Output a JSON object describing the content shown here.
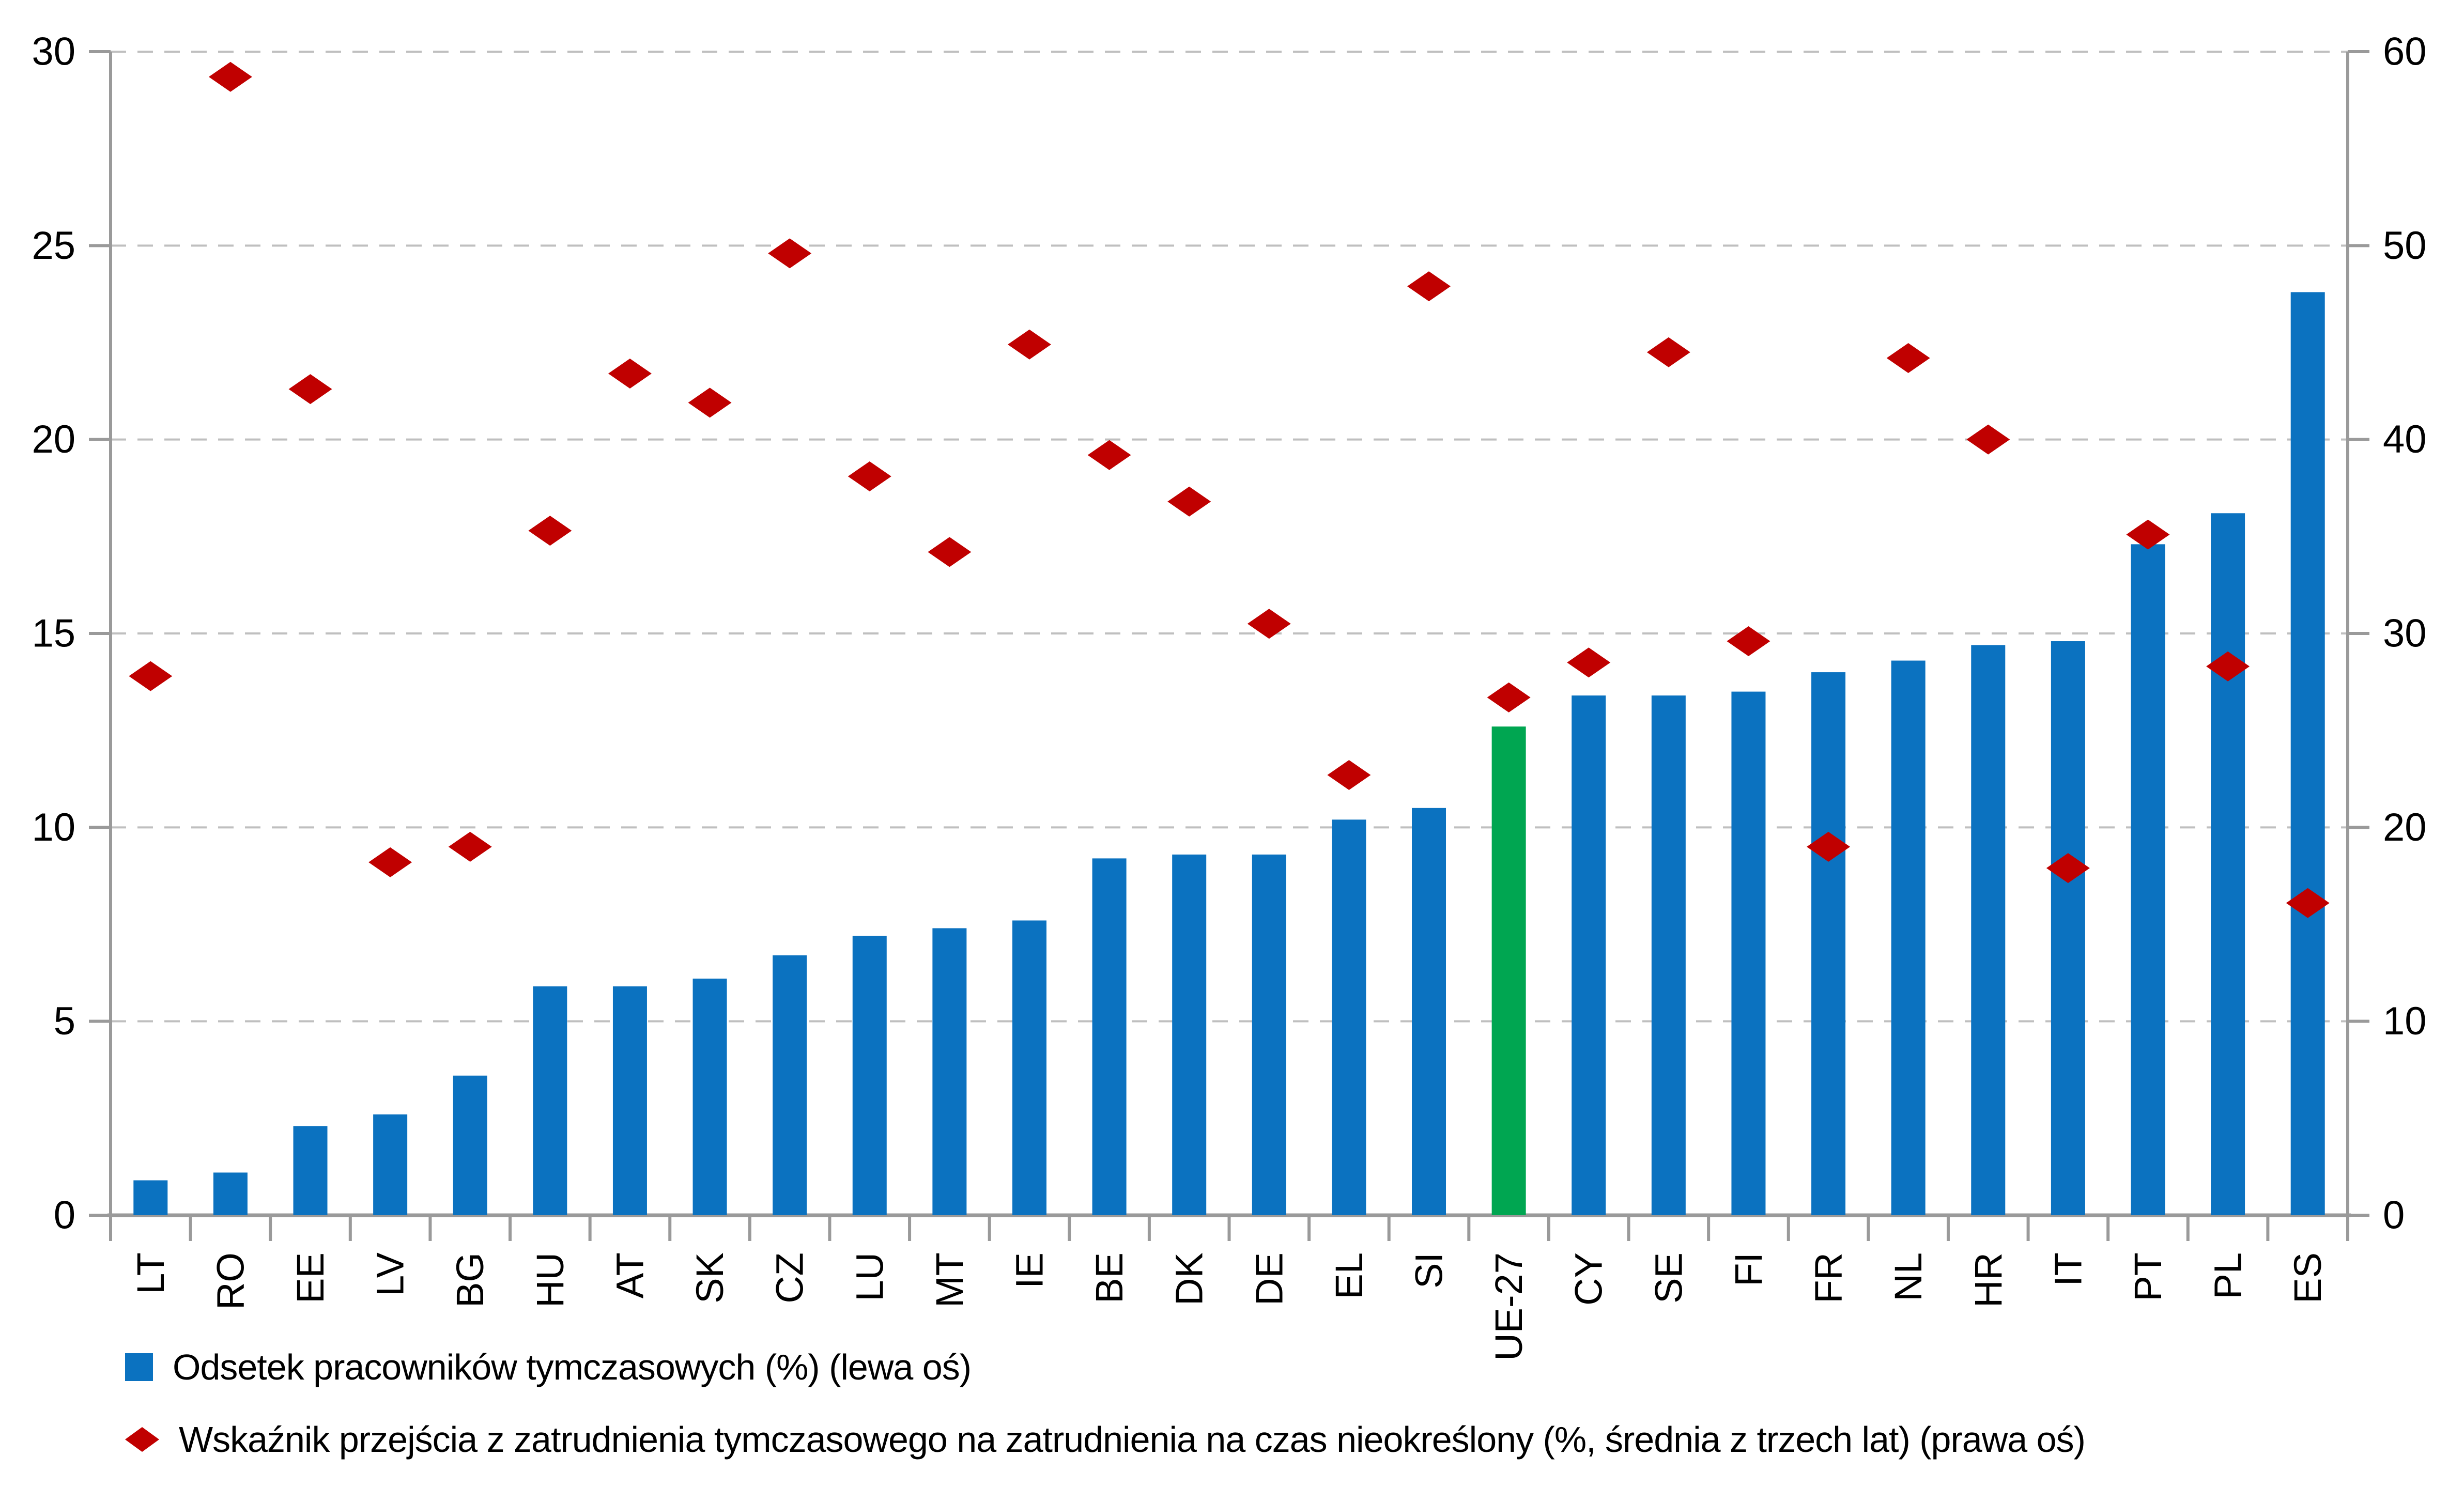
{
  "chart_data": {
    "type": "bar",
    "categories": [
      "LT",
      "RO",
      "EE",
      "LV",
      "BG",
      "HU",
      "AT",
      "SK",
      "CZ",
      "LU",
      "MT",
      "IE",
      "BE",
      "DK",
      "DE",
      "EL",
      "SI",
      "UE-27",
      "CY",
      "SE",
      "FI",
      "FR",
      "NL",
      "HR",
      "IT",
      "PT",
      "PL",
      "ES"
    ],
    "series": [
      {
        "name": "Odsetek pracowników tymczasowych (%) (lewa oś)",
        "type": "bar",
        "axis": "left",
        "color": "#0b72c0",
        "highlight": {
          "category": "UE-27",
          "color": "#00a651"
        },
        "values": [
          0.9,
          1.1,
          2.3,
          2.6,
          3.6,
          5.9,
          5.9,
          6.1,
          6.7,
          7.2,
          7.4,
          7.6,
          9.2,
          9.3,
          9.3,
          10.2,
          10.5,
          12.6,
          13.4,
          13.4,
          13.5,
          14.0,
          14.3,
          14.7,
          14.8,
          17.3,
          18.1,
          23.8
        ]
      },
      {
        "name": "Wskaźnik przejścia z zatrudnienia tymczasowego na zatrudnienia na czas nieokreślony (%, średnia z trzech lat) (prawa oś)",
        "type": "scatter",
        "marker": "diamond",
        "axis": "right",
        "color": "#c00000",
        "values": [
          27.8,
          58.7,
          42.6,
          18.2,
          19.0,
          35.3,
          43.4,
          41.9,
          49.6,
          38.1,
          34.2,
          44.9,
          39.2,
          36.8,
          30.5,
          22.7,
          47.9,
          26.7,
          28.5,
          44.5,
          29.6,
          19.0,
          44.2,
          40.0,
          17.9,
          35.1,
          28.3,
          16.1
        ]
      }
    ],
    "left_axis": {
      "min": 0,
      "max": 30,
      "ticks": [
        0,
        5,
        10,
        15,
        20,
        25,
        30
      ]
    },
    "right_axis": {
      "min": 0,
      "max": 60,
      "ticks": [
        0,
        10,
        20,
        30,
        40,
        50,
        60
      ]
    },
    "grid": "horizontal-dashed",
    "legend_position": "bottom-left",
    "x_label_rotation": -90
  }
}
